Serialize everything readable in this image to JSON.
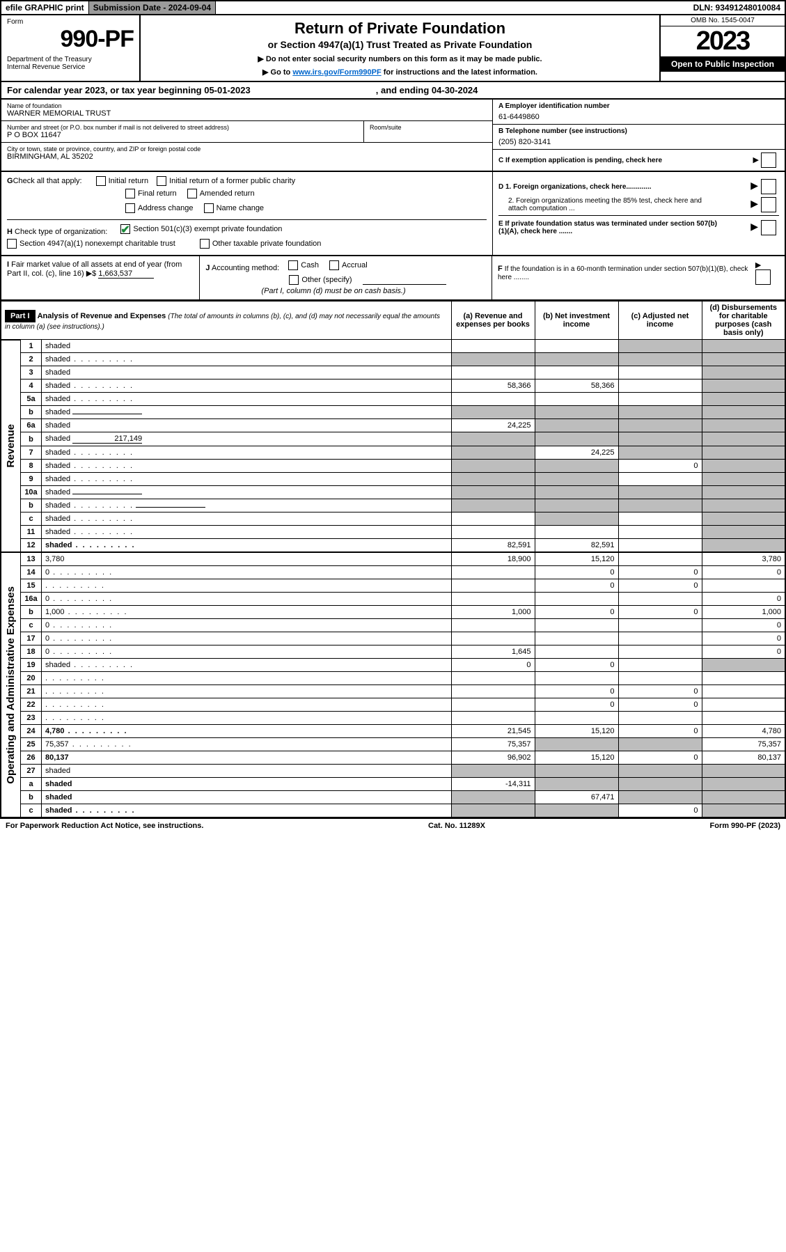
{
  "topbar": {
    "efile": "efile GRAPHIC print",
    "subdate": "Submission Date - 2024-09-04",
    "dln": "DLN: 93491248010084"
  },
  "header": {
    "form": "Form",
    "formnum": "990-PF",
    "dept": "Department of the Treasury\nInternal Revenue Service",
    "title": "Return of Private Foundation",
    "subtitle": "or Section 4947(a)(1) Trust Treated as Private Foundation",
    "note1": "▶ Do not enter social security numbers on this form as it may be made public.",
    "note2_pre": "▶ Go to ",
    "note2_link": "www.irs.gov/Form990PF",
    "note2_post": " for instructions and the latest information.",
    "omb": "OMB No. 1545-0047",
    "year": "2023",
    "open": "Open to Public Inspection"
  },
  "calrow": {
    "text": "For calendar year 2023, or tax year beginning 05-01-2023",
    "ending": ", and ending 04-30-2024"
  },
  "info": {
    "name_lbl": "Name of foundation",
    "name": "WARNER MEMORIAL TRUST",
    "addr_lbl": "Number and street (or P.O. box number if mail is not delivered to street address)",
    "addr": "P O BOX 11647",
    "room_lbl": "Room/suite",
    "room": "",
    "city_lbl": "City or town, state or province, country, and ZIP or foreign postal code",
    "city": "BIRMINGHAM, AL  35202",
    "a_lbl": "A Employer identification number",
    "a_val": "61-6449860",
    "b_lbl": "B Telephone number (see instructions)",
    "b_val": "(205) 820-3141",
    "c_lbl": "C If exemption application is pending, check here"
  },
  "g": {
    "lead": "G",
    "text": "Check all that apply:",
    "opt1": "Initial return",
    "opt2": "Initial return of a former public charity",
    "opt3": "Final return",
    "opt4": "Amended return",
    "opt5": "Address change",
    "opt6": "Name change"
  },
  "d": {
    "d1": "D 1. Foreign organizations, check here.............",
    "d2": "2. Foreign organizations meeting the 85% test, check here and attach computation ...",
    "e": "E  If private foundation status was terminated under section 507(b)(1)(A), check here ......."
  },
  "h": {
    "lead": "H",
    "text": "Check type of organization:",
    "opt1": "Section 501(c)(3) exempt private foundation",
    "opt2": "Section 4947(a)(1) nonexempt charitable trust",
    "opt3": "Other taxable private foundation"
  },
  "i": {
    "lead": "I",
    "text": "Fair market value of all assets at end of year (from Part II, col. (c), line 16) ▶$ ",
    "val": "1,663,537"
  },
  "j": {
    "lead": "J",
    "text": "Accounting method:",
    "cash": "Cash",
    "accrual": "Accrual",
    "other": "Other (specify)",
    "note": "(Part I, column (d) must be on cash basis.)"
  },
  "f": {
    "lead": "F",
    "text": "If the foundation is in a 60-month termination under section 507(b)(1)(B), check here ........"
  },
  "part1": {
    "tag": "Part I",
    "title": "Analysis of Revenue and Expenses",
    "note": "(The total of amounts in columns (b), (c), and (d) may not necessarily equal the amounts in column (a) (see instructions).)",
    "col_a": "(a) Revenue and expenses per books",
    "col_b": "(b) Net investment income",
    "col_c": "(c) Adjusted net income",
    "col_d": "(d) Disbursements for charitable purposes (cash basis only)"
  },
  "sections": {
    "revenue": "Revenue",
    "expenses": "Operating and Administrative Expenses"
  },
  "lines": [
    {
      "n": "1",
      "d": "shaded",
      "a": "",
      "b": "",
      "c": "shaded"
    },
    {
      "n": "2",
      "d": "shaded",
      "dots": true,
      "a": "shaded",
      "b": "shaded",
      "c": "shaded"
    },
    {
      "n": "3",
      "d": "shaded",
      "a": "",
      "b": "",
      "c": ""
    },
    {
      "n": "4",
      "d": "shaded",
      "dots": true,
      "a": "58,366",
      "b": "58,366",
      "c": ""
    },
    {
      "n": "5a",
      "d": "shaded",
      "dots": true,
      "a": "",
      "b": "",
      "c": ""
    },
    {
      "n": "b",
      "d": "shaded",
      "inline": true,
      "a": "shaded",
      "b": "shaded",
      "c": "shaded"
    },
    {
      "n": "6a",
      "d": "shaded",
      "a": "24,225",
      "b": "shaded",
      "c": "shaded"
    },
    {
      "n": "b",
      "d": "shaded",
      "inline": true,
      "inlineval": "217,149",
      "a": "shaded",
      "b": "shaded",
      "c": "shaded"
    },
    {
      "n": "7",
      "d": "shaded",
      "dots": true,
      "a": "shaded",
      "b": "24,225",
      "c": "shaded"
    },
    {
      "n": "8",
      "d": "shaded",
      "dots": true,
      "a": "shaded",
      "b": "shaded",
      "c": "0"
    },
    {
      "n": "9",
      "d": "shaded",
      "dots": true,
      "a": "shaded",
      "b": "shaded",
      "c": ""
    },
    {
      "n": "10a",
      "d": "shaded",
      "inline": true,
      "a": "shaded",
      "b": "shaded",
      "c": "shaded"
    },
    {
      "n": "b",
      "d": "shaded",
      "dots": true,
      "inline": true,
      "a": "shaded",
      "b": "shaded",
      "c": "shaded"
    },
    {
      "n": "c",
      "d": "shaded",
      "dots": true,
      "a": "",
      "b": "shaded",
      "c": ""
    },
    {
      "n": "11",
      "d": "shaded",
      "dots": true,
      "a": "",
      "b": "",
      "c": ""
    },
    {
      "n": "12",
      "d": "shaded",
      "dots": true,
      "bold": true,
      "a": "82,591",
      "b": "82,591",
      "c": ""
    },
    {
      "n": "13",
      "d": "3,780",
      "a": "18,900",
      "b": "15,120",
      "c": "",
      "sec": "exp"
    },
    {
      "n": "14",
      "d": "0",
      "dots": true,
      "a": "",
      "b": "0",
      "c": "0",
      "sec": "exp"
    },
    {
      "n": "15",
      "d": "",
      "dots": true,
      "a": "",
      "b": "0",
      "c": "0",
      "sec": "exp"
    },
    {
      "n": "16a",
      "d": "0",
      "dots": true,
      "a": "",
      "b": "",
      "c": "",
      "sec": "exp"
    },
    {
      "n": "b",
      "d": "1,000",
      "dots": true,
      "a": "1,000",
      "b": "0",
      "c": "0",
      "sec": "exp"
    },
    {
      "n": "c",
      "d": "0",
      "dots": true,
      "a": "",
      "b": "",
      "c": "",
      "sec": "exp"
    },
    {
      "n": "17",
      "d": "0",
      "dots": true,
      "a": "",
      "b": "",
      "c": "",
      "sec": "exp"
    },
    {
      "n": "18",
      "d": "0",
      "dots": true,
      "a": "1,645",
      "b": "",
      "c": "",
      "sec": "exp"
    },
    {
      "n": "19",
      "d": "shaded",
      "dots": true,
      "a": "0",
      "b": "0",
      "c": "",
      "sec": "exp"
    },
    {
      "n": "20",
      "d": "",
      "dots": true,
      "a": "",
      "b": "",
      "c": "",
      "sec": "exp"
    },
    {
      "n": "21",
      "d": "",
      "dots": true,
      "a": "",
      "b": "0",
      "c": "0",
      "sec": "exp"
    },
    {
      "n": "22",
      "d": "",
      "dots": true,
      "a": "",
      "b": "0",
      "c": "0",
      "sec": "exp"
    },
    {
      "n": "23",
      "d": "",
      "dots": true,
      "a": "",
      "b": "",
      "c": "",
      "sec": "exp"
    },
    {
      "n": "24",
      "d": "4,780",
      "dots": true,
      "bold": true,
      "a": "21,545",
      "b": "15,120",
      "c": "0",
      "sec": "exp"
    },
    {
      "n": "25",
      "d": "75,357",
      "dots": true,
      "a": "75,357",
      "b": "shaded",
      "c": "shaded",
      "sec": "exp"
    },
    {
      "n": "26",
      "d": "80,137",
      "bold": true,
      "a": "96,902",
      "b": "15,120",
      "c": "0",
      "sec": "exp"
    },
    {
      "n": "27",
      "d": "shaded",
      "bold": false,
      "a": "shaded",
      "b": "shaded",
      "c": "shaded",
      "sec": "bot"
    },
    {
      "n": "a",
      "d": "shaded",
      "bold": true,
      "a": "-14,311",
      "b": "shaded",
      "c": "shaded",
      "sec": "bot"
    },
    {
      "n": "b",
      "d": "shaded",
      "bold": true,
      "a": "shaded",
      "b": "67,471",
      "c": "shaded",
      "sec": "bot"
    },
    {
      "n": "c",
      "d": "shaded",
      "dots": true,
      "bold": true,
      "a": "shaded",
      "b": "shaded",
      "c": "0",
      "sec": "bot"
    }
  ],
  "footer": {
    "left": "For Paperwork Reduction Act Notice, see instructions.",
    "mid": "Cat. No. 11289X",
    "right": "Form 990-PF (2023)"
  },
  "colors": {
    "shaded": "#bdbdbd",
    "link": "#0066cc",
    "check": "#1a8a3a"
  }
}
